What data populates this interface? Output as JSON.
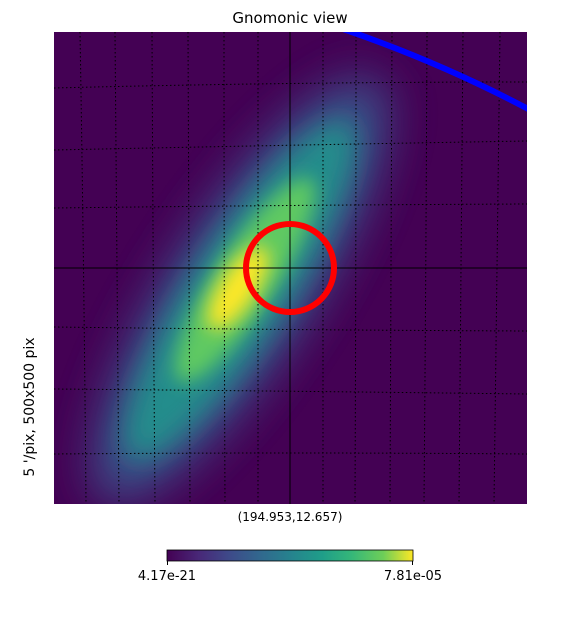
{
  "title": "Gnomonic view",
  "side_label": "5 '/pix,   500x500 pix",
  "center_label": "(194.953,12.657)",
  "colorbar": {
    "min_label": "4.17e-21",
    "max_label": "7.81e-05",
    "colormap": "viridis"
  },
  "chart_data": {
    "type": "heatmap",
    "projection": "gnomonic",
    "title": "Gnomonic view",
    "resolution_label": "5 '/pix,   500x500 pix",
    "center": [
      194.953,
      12.657
    ],
    "value_range": [
      4.17e-21,
      7.81e-05
    ],
    "grid": true,
    "colors": {
      "background": "#440154",
      "peak": "#fde725",
      "circle": "#ff0000",
      "arc": "#0000ff",
      "crosshair": "#000000"
    },
    "overlays": [
      {
        "kind": "circle",
        "color": "#ff0000"
      },
      {
        "kind": "arc",
        "color": "#0000ff"
      }
    ]
  }
}
